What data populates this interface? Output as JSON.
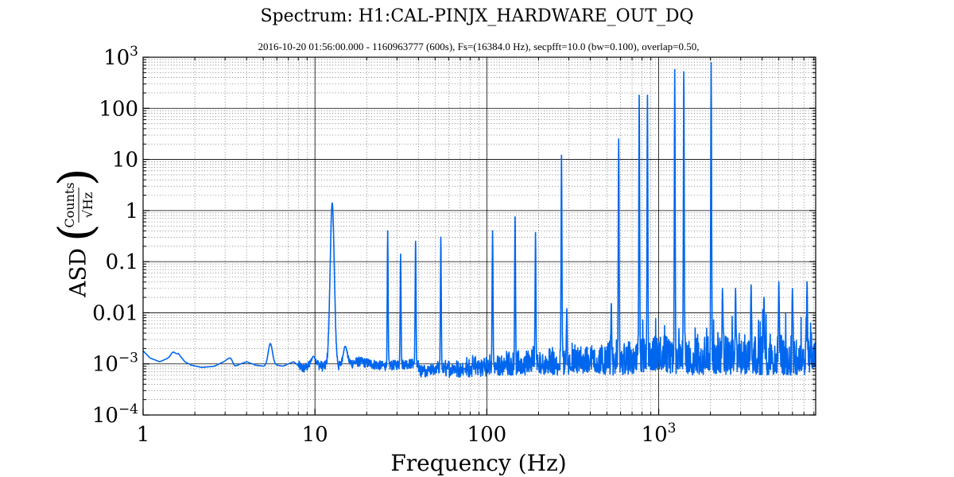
{
  "chart_data": {
    "type": "line",
    "title": "Spectrum: H1:CAL-PINJX_HARDWARE_OUT_DQ",
    "subtitle": "2016-10-20 01:56:00.000 - 1160963777 (600s), Fs=(16384.0 Hz), secpfft=10.0 (bw=0.100), overlap=0.50,",
    "xlabel": "Frequency (Hz)",
    "ylabel": "ASD",
    "ylabel_unit_numerator": "Counts",
    "ylabel_unit_denominator": "√Hz",
    "xscale": "log",
    "yscale": "log",
    "xlim": [
      1,
      8192
    ],
    "ylim": [
      0.0001,
      1000
    ],
    "grid": true,
    "line_color": "#0066ee",
    "x_ticks": [
      {
        "value": 1,
        "label": "1"
      },
      {
        "value": 10,
        "label": "10"
      },
      {
        "value": 100,
        "label": "100"
      },
      {
        "value": 1000,
        "label": "10",
        "sup": "3"
      }
    ],
    "y_ticks": [
      {
        "value": 0.0001,
        "label": "10",
        "sup": "−4"
      },
      {
        "value": 0.001,
        "label": "10",
        "sup": "−3"
      },
      {
        "value": 0.01,
        "label": "0.01"
      },
      {
        "value": 0.1,
        "label": "0.1"
      },
      {
        "value": 1,
        "label": "1"
      },
      {
        "value": 10,
        "label": "10"
      },
      {
        "value": 100,
        "label": "100"
      },
      {
        "value": 1000,
        "label": "10",
        "sup": "3"
      }
    ],
    "baseline": [
      [
        1.0,
        0.0018
      ],
      [
        1.1,
        0.0013
      ],
      [
        1.25,
        0.0011
      ],
      [
        1.4,
        0.0013
      ],
      [
        1.6,
        0.0016
      ],
      [
        1.75,
        0.0011
      ],
      [
        1.9,
        0.00095
      ],
      [
        2.2,
        0.00085
      ],
      [
        2.6,
        0.0009
      ],
      [
        3.1,
        0.0012
      ],
      [
        3.4,
        0.0009
      ],
      [
        4.0,
        0.0011
      ],
      [
        4.5,
        0.00095
      ],
      [
        5.0,
        0.0009
      ],
      [
        5.6,
        0.001
      ],
      [
        6.5,
        0.0009
      ],
      [
        7.5,
        0.0011
      ],
      [
        8.5,
        0.0008
      ],
      [
        10.0,
        0.001
      ],
      [
        11.0,
        0.0009
      ],
      [
        14.0,
        0.0009
      ],
      [
        18.0,
        0.0011
      ],
      [
        25.0,
        0.0009
      ],
      [
        35.0,
        0.001
      ],
      [
        50.0,
        0.001
      ],
      [
        80.0,
        0.001
      ],
      [
        150.0,
        0.0011
      ],
      [
        300.0,
        0.0011
      ],
      [
        600.0,
        0.0011
      ],
      [
        1000.0,
        0.0011
      ],
      [
        2000.0,
        0.0011
      ],
      [
        4000.0,
        0.0011
      ],
      [
        8192.0,
        0.0011
      ]
    ],
    "peaks": [
      {
        "x": 1.5,
        "y": 0.0017
      },
      {
        "x": 3.2,
        "y": 0.0013
      },
      {
        "x": 5.5,
        "y": 0.0025
      },
      {
        "x": 9.8,
        "y": 0.0014
      },
      {
        "x": 12.6,
        "y": 1.4
      },
      {
        "x": 15.0,
        "y": 0.0022
      },
      {
        "x": 26.5,
        "y": 0.4
      },
      {
        "x": 31.5,
        "y": 0.14
      },
      {
        "x": 38.5,
        "y": 0.25
      },
      {
        "x": 54.0,
        "y": 0.3
      },
      {
        "x": 108.0,
        "y": 0.4
      },
      {
        "x": 146.0,
        "y": 0.75
      },
      {
        "x": 192.0,
        "y": 0.37
      },
      {
        "x": 272.0,
        "y": 12.0
      },
      {
        "x": 292.0,
        "y": 0.012
      },
      {
        "x": 530.0,
        "y": 0.015
      },
      {
        "x": 585.0,
        "y": 25.0
      },
      {
        "x": 770.0,
        "y": 180.0
      },
      {
        "x": 860.0,
        "y": 180.0
      },
      {
        "x": 1240.0,
        "y": 570.0
      },
      {
        "x": 1400.0,
        "y": 520.0
      },
      {
        "x": 2020.0,
        "y": 780.0
      },
      {
        "x": 2350.0,
        "y": 0.03
      },
      {
        "x": 2800.0,
        "y": 0.03
      },
      {
        "x": 3450.0,
        "y": 0.035
      },
      {
        "x": 4100.0,
        "y": 0.02
      },
      {
        "x": 5000.0,
        "y": 0.04
      },
      {
        "x": 6000.0,
        "y": 0.03
      },
      {
        "x": 7300.0,
        "y": 0.04
      }
    ]
  }
}
